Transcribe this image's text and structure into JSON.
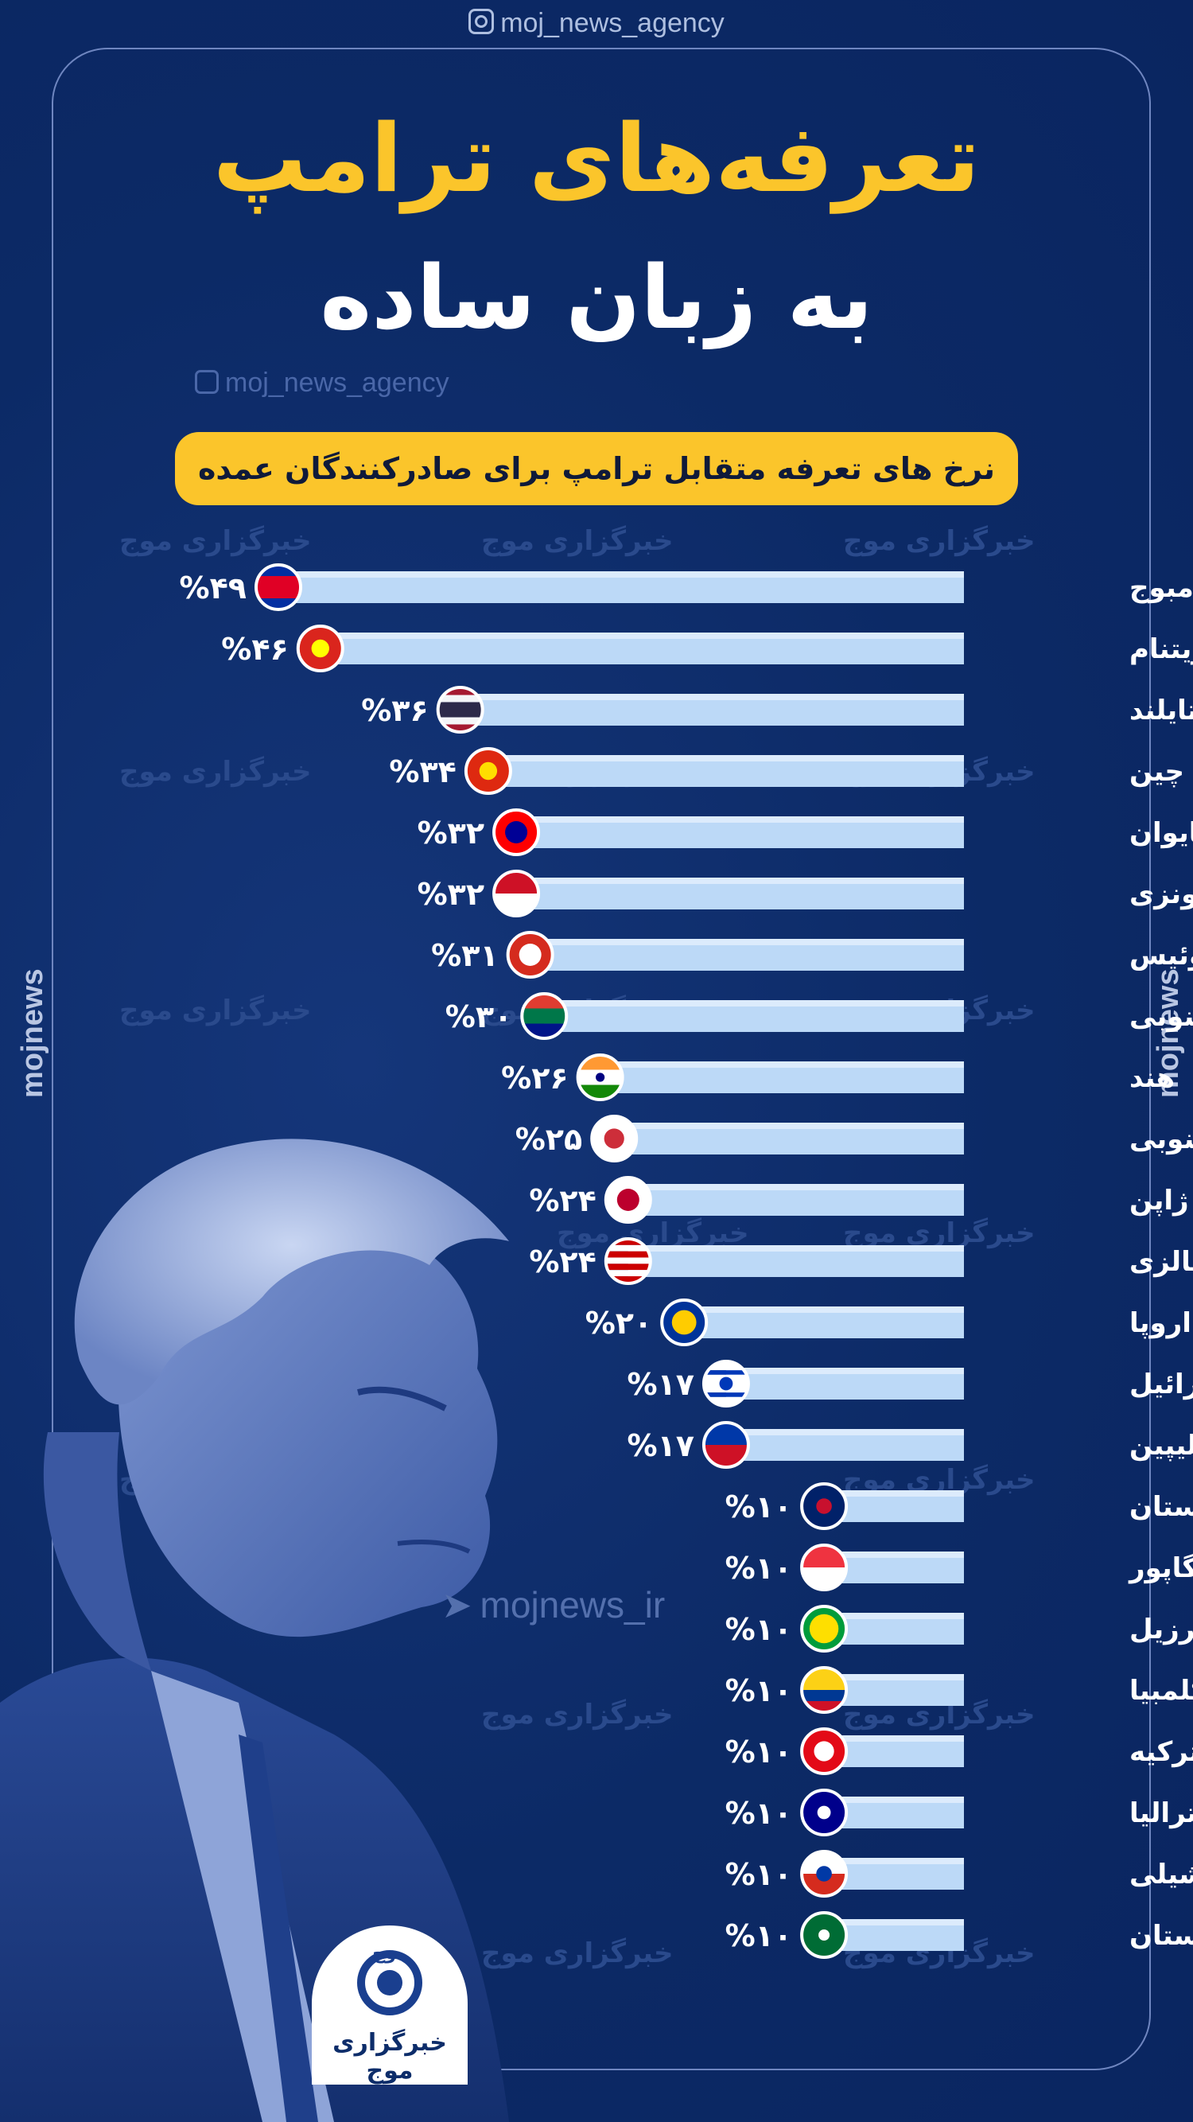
{
  "header": {
    "handle": "moj_news_agency",
    "title_line1": "تعرفه‌های ترامپ",
    "title_line2": "به زبان ساده",
    "subtitle": "نرخ های تعرفه متقابل ترامپ برای صادرکنندگان عمده"
  },
  "watermarks": {
    "handle": "moj_news_agency",
    "side_text": "mojnews",
    "repeat_text": "خبرگزاری موج",
    "telegram": "mojnews_ir"
  },
  "logo": {
    "mark_text": "موج",
    "name": "خبرگزاری موج"
  },
  "colors": {
    "background": "#0d2d6a",
    "accent": "#fbc52b",
    "bar": "#bcd9f7",
    "text": "#ffffff"
  },
  "chart_data": {
    "type": "bar",
    "orientation": "horizontal",
    "title": "نرخ های تعرفه متقابل ترامپ برای صادرکنندگان عمده",
    "unit": "%",
    "xlim": [
      0,
      49
    ],
    "categories": [
      "کامبوج",
      "ویتنام",
      "تایلند",
      "چین",
      "تایوان",
      "اندونزی",
      "سوئیس",
      "آفریقای جنوبی",
      "هند",
      "کره جنوبی",
      "ژاپن",
      "مالزی",
      "اتحادیه اروپا",
      "اسرائیل",
      "فیلیپین",
      "انگلستان",
      "سنگاپور",
      "برزیل",
      "کلمبیا",
      "ترکیه",
      "استرالیا",
      "شیلی",
      "عربستان"
    ],
    "values": [
      49,
      46,
      36,
      34,
      32,
      32,
      31,
      30,
      26,
      25,
      24,
      24,
      20,
      17,
      17,
      10,
      10,
      10,
      10,
      10,
      10,
      10,
      10
    ],
    "value_labels": [
      "۴۹",
      "۴۶",
      "۳۶",
      "۳۴",
      "۳۲",
      "۳۲",
      "۳۱",
      "۳۰",
      "۲۶",
      "۲۵",
      "۲۴",
      "۲۴",
      "۲۰",
      "۱۷",
      "۱۷",
      "۱۰",
      "۱۰",
      "۱۰",
      "۱۰",
      "۱۰",
      "۱۰",
      "۱۰",
      "۱۰"
    ],
    "flags": [
      "cambodia-flag-icon",
      "vietnam-flag-icon",
      "thailand-flag-icon",
      "china-flag-icon",
      "taiwan-flag-icon",
      "indonesia-flag-icon",
      "switzerland-flag-icon",
      "south-africa-flag-icon",
      "india-flag-icon",
      "south-korea-flag-icon",
      "japan-flag-icon",
      "malaysia-flag-icon",
      "eu-flag-icon",
      "israel-flag-icon",
      "philippines-flag-icon",
      "uk-flag-icon",
      "singapore-flag-icon",
      "brazil-flag-icon",
      "colombia-flag-icon",
      "turkey-flag-icon",
      "australia-flag-icon",
      "chile-flag-icon",
      "saudi-arabia-flag-icon"
    ]
  }
}
